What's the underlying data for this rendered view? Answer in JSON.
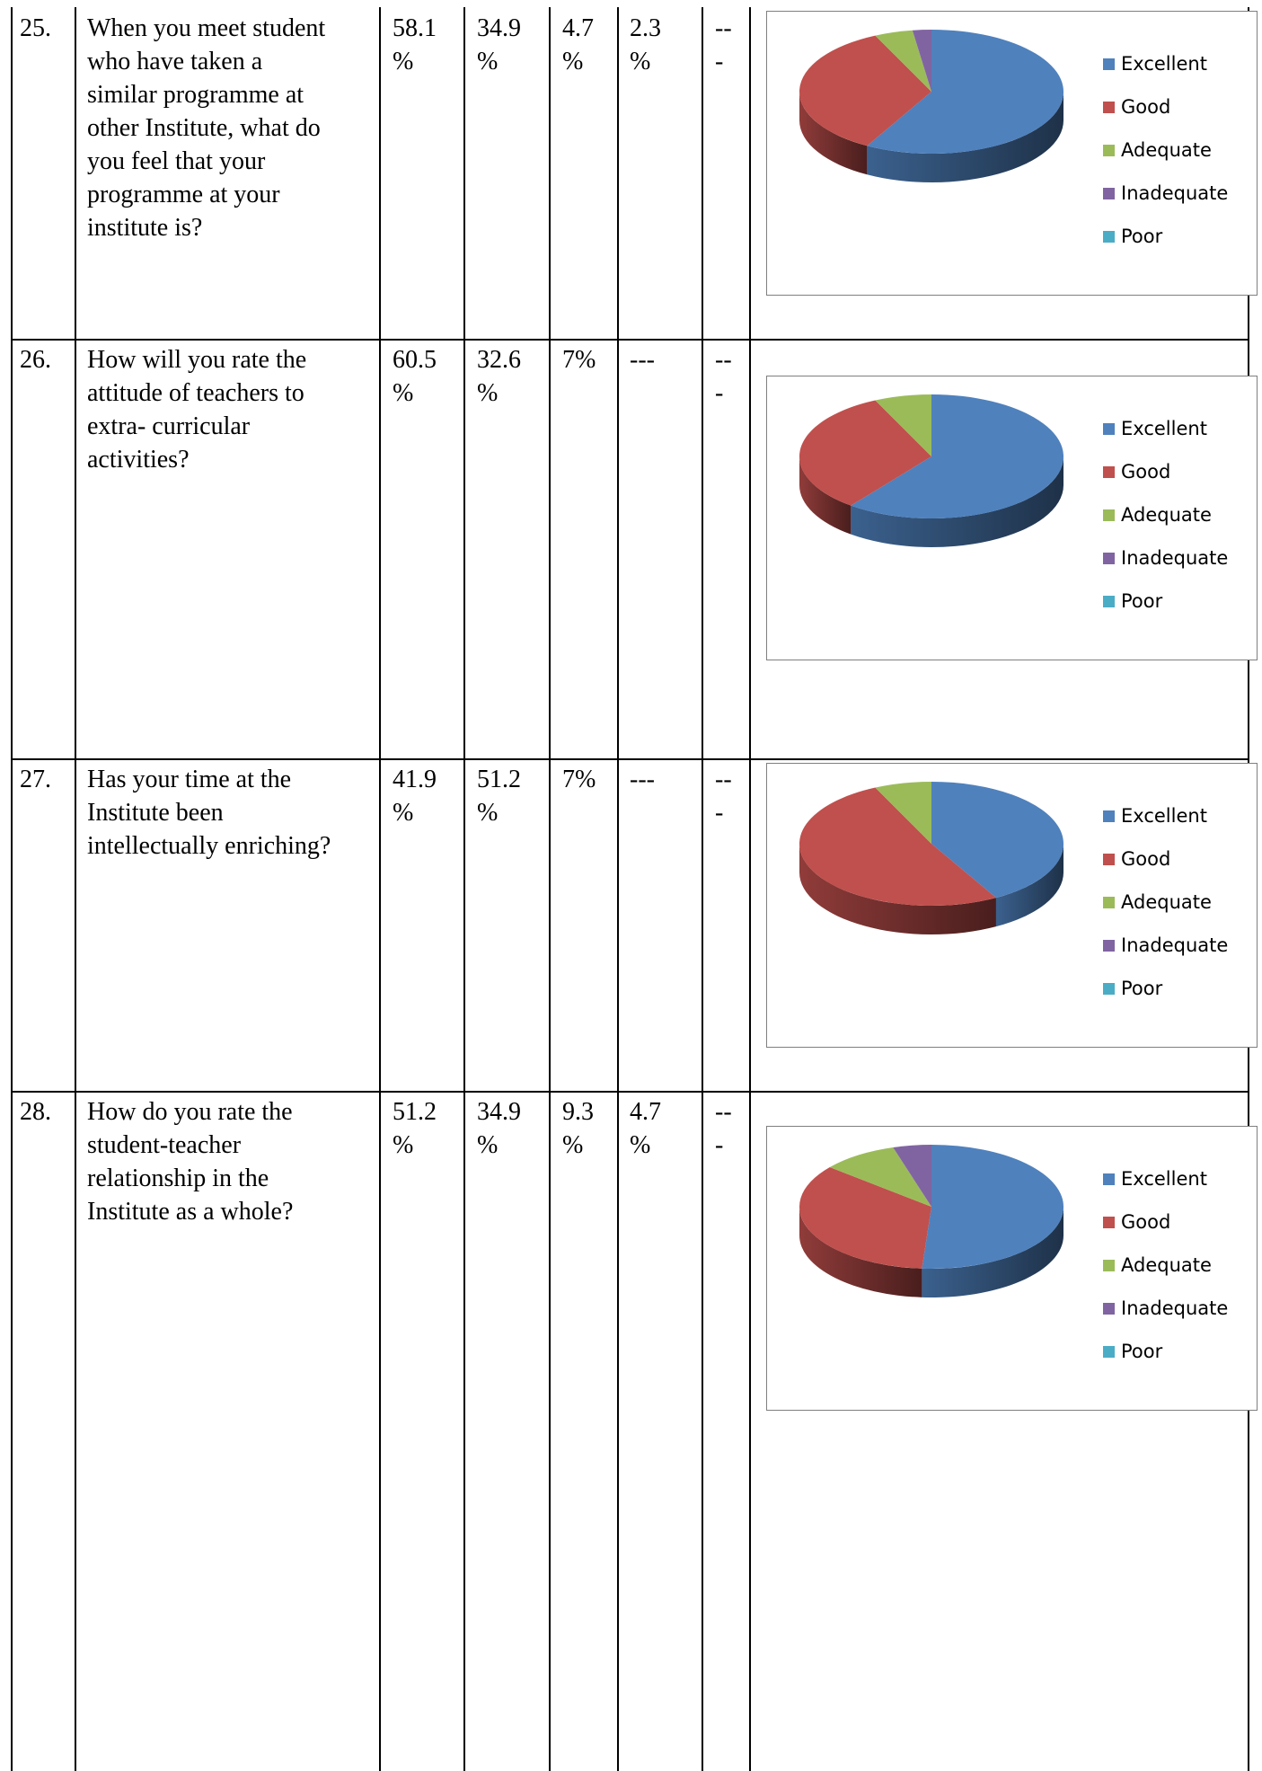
{
  "rows": [
    {
      "num": "25.",
      "question": "When you meet student\nwho have taken a\nsimilar programme at\nother Institute, what do\nyou feel that your\nprogramme at your\ninstitute is?",
      "excellent": "58.1\n%",
      "good": "34.9\n%",
      "adequate": "4.7\n%",
      "inadequate": "2.3\n%",
      "poor": "--\n-"
    },
    {
      "num": "26.",
      "question": "How will you rate the\nattitude of teachers to\nextra- curricular\nactivities?",
      "excellent": "60.5\n%",
      "good": "32.6\n%",
      "adequate": "7%",
      "inadequate": "---",
      "poor": "--\n-"
    },
    {
      "num": "27.",
      "question": "Has your time at the\nInstitute been\nintellectually enriching?",
      "excellent": "41.9\n%",
      "good": "51.2\n%",
      "adequate": "7%",
      "inadequate": "---",
      "poor": "--\n-"
    },
    {
      "num": "28.",
      "question": "How do you rate the\nstudent-teacher\nrelationship in the\nInstitute as a whole?",
      "excellent": "51.2\n%",
      "good": "34.9\n%",
      "adequate": "9.3\n%",
      "inadequate": "4.7\n%",
      "poor": "--\n-"
    }
  ],
  "colors": {
    "Excellent": "#4f81bd",
    "Good": "#c0504d",
    "Adequate": "#9bbb59",
    "Inadequate": "#8064a2",
    "Poor": "#4bacc6"
  },
  "chart_data": [
    {
      "type": "pie",
      "categories": [
        "Excellent",
        "Good",
        "Adequate",
        "Inadequate",
        "Poor"
      ],
      "values": [
        58.1,
        34.9,
        4.7,
        2.3,
        0
      ],
      "legend_position": "right"
    },
    {
      "type": "pie",
      "categories": [
        "Excellent",
        "Good",
        "Adequate",
        "Inadequate",
        "Poor"
      ],
      "values": [
        60.5,
        32.6,
        7,
        0,
        0
      ],
      "legend_position": "right"
    },
    {
      "type": "pie",
      "categories": [
        "Excellent",
        "Good",
        "Adequate",
        "Inadequate",
        "Poor"
      ],
      "values": [
        41.9,
        51.2,
        7,
        0,
        0
      ],
      "legend_position": "right"
    },
    {
      "type": "pie",
      "categories": [
        "Excellent",
        "Good",
        "Adequate",
        "Inadequate",
        "Poor"
      ],
      "values": [
        51.2,
        34.9,
        9.3,
        4.7,
        0
      ],
      "legend_position": "right"
    }
  ]
}
